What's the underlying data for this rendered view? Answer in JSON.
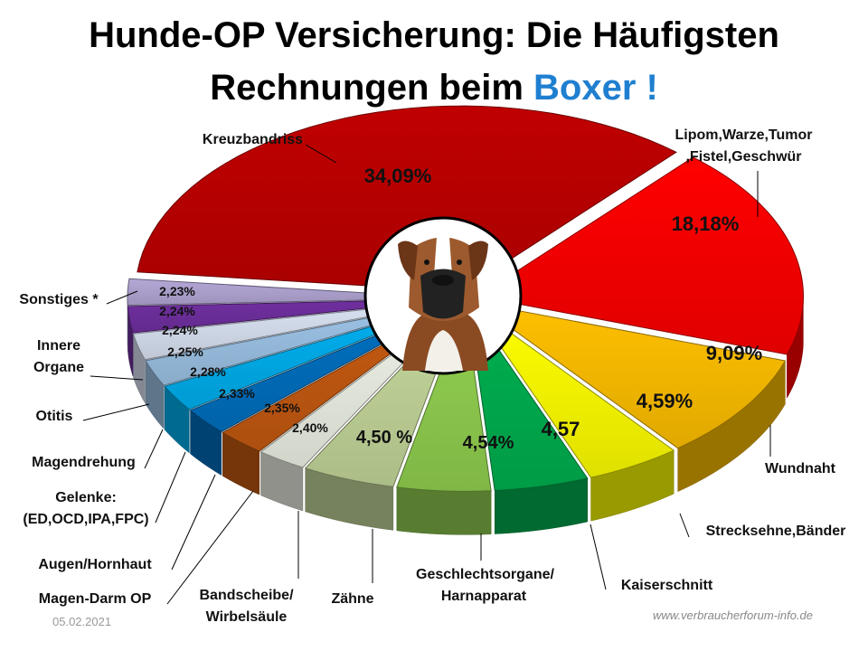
{
  "title_line1": "Hunde-OP Versicherung: Die Häufigsten",
  "title_line2_prefix": "Rechnungen beim ",
  "title_line2_accent": "Boxer !",
  "accent_color": "#1f7fd0",
  "date": "05.02.2021",
  "source": "www.verbraucherforum-info.de",
  "chart_data": {
    "type": "pie",
    "title": "Hunde-OP Versicherung: Die Häufigsten Rechnungen beim Boxer !",
    "style": "3d-exploded",
    "slices": [
      {
        "label": "Kreuzbandriss",
        "value": 34.09,
        "value_label": "34,09%",
        "color": "#c00000"
      },
      {
        "label": "Lipom,Warze,Tumor ,Fistel,Geschwür",
        "value": 18.18,
        "value_label": "18,18%",
        "color": "#ff0000"
      },
      {
        "label": "Wundnaht",
        "value": 9.09,
        "value_label": "9,09%",
        "color": "#ffc000"
      },
      {
        "label": "Strecksehne,Bänder",
        "value": 4.59,
        "value_label": "4,59%",
        "color": "#ffff00"
      },
      {
        "label": "Kaiserschnitt",
        "value": 4.57,
        "value_label": "4,57",
        "color": "#00b050"
      },
      {
        "label": "Geschlechtsorgane/ Harnapparat",
        "value": 4.54,
        "value_label": "4,54%",
        "color": "#92d050"
      },
      {
        "label": "Zähne",
        "value": 4.5,
        "value_label": "4,50 %",
        "color": "#c4d79b"
      },
      {
        "label": "Bandscheibe/ Wirbelsäule",
        "value": 2.4,
        "value_label": "2,40%",
        "color": "#eef2e6"
      },
      {
        "label": "Magen-Darm  OP",
        "value": 2.35,
        "value_label": "2,35%",
        "color": "#c55a11"
      },
      {
        "label": "Augen/Hornhaut",
        "value": 2.33,
        "value_label": "2,33%",
        "color": "#0070c0"
      },
      {
        "label": "Gelenke: (ED,OCD,IPA,FPC)",
        "value": 2.28,
        "value_label": "2,28%",
        "color": "#00b0f0"
      },
      {
        "label": "Magendrehung",
        "value": 2.25,
        "value_label": "2,25%",
        "color": "#9dc3e6"
      },
      {
        "label": "Otitis",
        "value": 2.24,
        "value_label": "2,24%",
        "color": "#dae3f3"
      },
      {
        "label": "Innere Organe",
        "value": 2.24,
        "value_label": "2,24%",
        "color": "#7030a0"
      },
      {
        "label": "Sonstiges *",
        "value": 2.23,
        "value_label": "2,23%",
        "color": "#b4a7d6"
      }
    ]
  }
}
